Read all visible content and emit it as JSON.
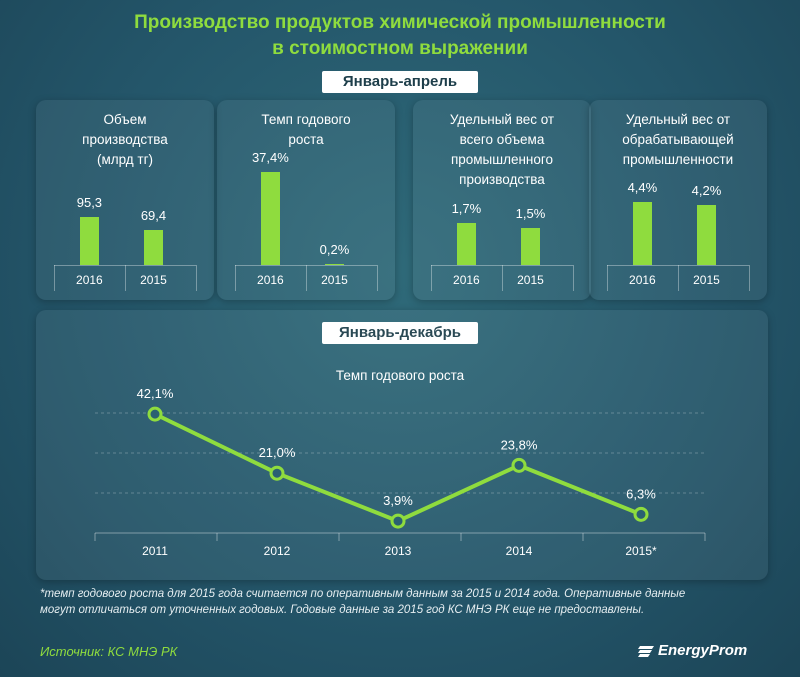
{
  "header": {
    "title_line1": "Производство продуктов химической промышленности",
    "title_line2": "в стоимостном выражении"
  },
  "section1_label": "Январь-апрель",
  "section2_label": "Январь-декабрь",
  "colors": {
    "accent": "#8fdc3e",
    "background": "#24566a"
  },
  "chart_data": [
    {
      "type": "bar",
      "title": "Объем производства (млрд тг)",
      "title_lines": [
        "Объем",
        "производства",
        "(млрд тг)"
      ],
      "categories": [
        "2016",
        "2015"
      ],
      "values": [
        95.3,
        69.4
      ],
      "labels": [
        "95,3",
        "69,4"
      ],
      "ylim": [
        0,
        200
      ]
    },
    {
      "type": "bar",
      "title": "Темп годового роста",
      "title_lines": [
        "Темп годового",
        "роста"
      ],
      "categories": [
        "2016",
        "2015"
      ],
      "values": [
        37.4,
        0.2
      ],
      "labels": [
        "37,4%",
        "0,2%"
      ],
      "ylim": [
        0,
        40
      ]
    },
    {
      "type": "bar",
      "title": "Удельный вес от всего объема промышленного производства",
      "title_lines": [
        "Удельный вес от",
        "всего объема",
        "промышленного",
        "производства"
      ],
      "categories": [
        "2016",
        "2015"
      ],
      "values": [
        1.7,
        1.5
      ],
      "labels": [
        "1,7%",
        "1,5%"
      ],
      "ylim": [
        0,
        4
      ]
    },
    {
      "type": "bar",
      "title": "Удельный вес от обрабатывающей промышленности",
      "title_lines": [
        "Удельный вес от",
        "обрабатывающей",
        "промышленности"
      ],
      "categories": [
        "2016",
        "2015"
      ],
      "values": [
        4.4,
        4.2
      ],
      "labels": [
        "4,4%",
        "4,2%"
      ],
      "ylim": [
        0,
        7
      ]
    },
    {
      "type": "line",
      "title": "Темп годового роста",
      "categories": [
        "2011",
        "2012",
        "2013",
        "2014",
        "2015*"
      ],
      "values": [
        42.1,
        21.0,
        3.9,
        23.8,
        6.3
      ],
      "labels": [
        "42,1%",
        "21,0%",
        "3,9%",
        "23,8%",
        "6,3%"
      ],
      "ylim": [
        0,
        45
      ],
      "grid": true
    }
  ],
  "footnote_line1": "*темп годового роста для 2015 года считается по оперативным данным за 2015 и 2014 года. Оперативные данные",
  "footnote_line2": "могут отличаться от уточненных годовых. Годовые данные за 2015 год КС МНЭ РК еще не предоставлены.",
  "source": "Источник: КС МНЭ РК",
  "brand": "EnergyProm",
  "brand_icon": "energyprom-logo-icon"
}
